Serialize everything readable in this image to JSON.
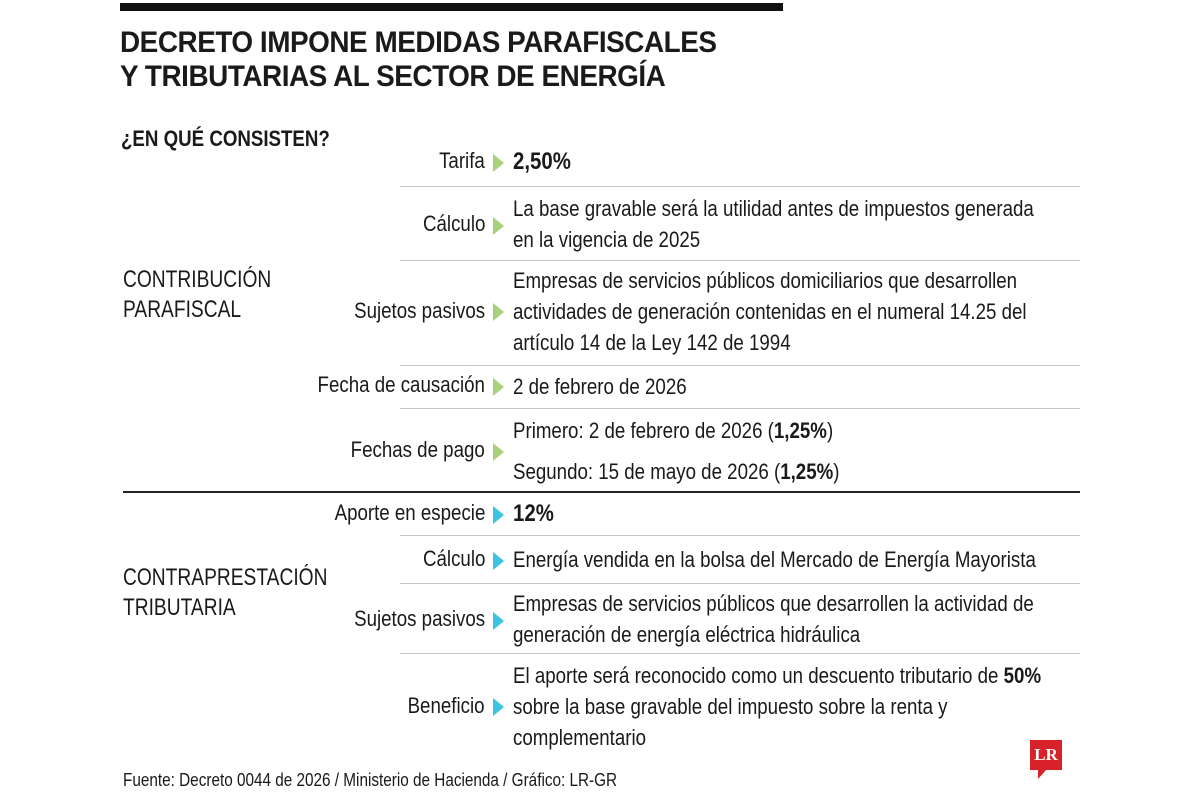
{
  "header": {
    "title_line1": "DECRETO IMPONE MEDIDAS PARAFISCALES",
    "title_line2": "Y TRIBUTARIAS AL SECTOR DE ENERGÍA",
    "subtitle": "¿EN QUÉ CONSISTEN?"
  },
  "sections": [
    {
      "name_line1": "CONTRIBUCIÓN",
      "name_line2": "PARAFISCAL",
      "color": "#a8d17a",
      "rows": [
        {
          "label": "Tarifa",
          "value": "2,50%"
        },
        {
          "label": "Cálculo",
          "value": "La base gravable será la utilidad antes de impuestos generada en la vigencia de 2025"
        },
        {
          "label": "Sujetos pasivos",
          "value": "Empresas de servicios públicos domiciliarios que desarrollen actividades de generación contenidas en el numeral 14.25 del artículo 14 de la Ley 142 de 1994"
        },
        {
          "label": "Fecha de causación",
          "value": "2 de febrero de 2026"
        },
        {
          "label": "Fechas de pago",
          "value_line1": "Primero: 2 de febrero de 2026 (",
          "value_line1_bold": "1,25%",
          "value_line2": "Segundo: 15 de mayo de 2026 (",
          "value_line2_bold": "1,25%",
          "close": ")"
        }
      ]
    },
    {
      "name_line1": "CONTRAPRESTACIÓN",
      "name_line2": "TRIBUTARIA",
      "color": "#3cc3e3",
      "rows": [
        {
          "label": "Aporte en especie",
          "value": "12%"
        },
        {
          "label": "Cálculo",
          "value": "Energía vendida en la bolsa del Mercado de Energía Mayorista"
        },
        {
          "label": "Sujetos pasivos",
          "value": "Empresas de servicios públicos que desarrollen la actividad de generación de energía eléctrica hidráulica"
        },
        {
          "label": "Beneficio",
          "value_pre": "El aporte será reconocido como un descuento tributario de ",
          "value_bold": "50%",
          "value_post": " sobre la base gravable del impuesto sobre la renta y complementario"
        }
      ]
    }
  ],
  "footer": {
    "source": "Fuente: Decreto 0044 de 2026 / Ministerio de Hacienda / Gráfico: LR-GR",
    "logo": "LR"
  }
}
